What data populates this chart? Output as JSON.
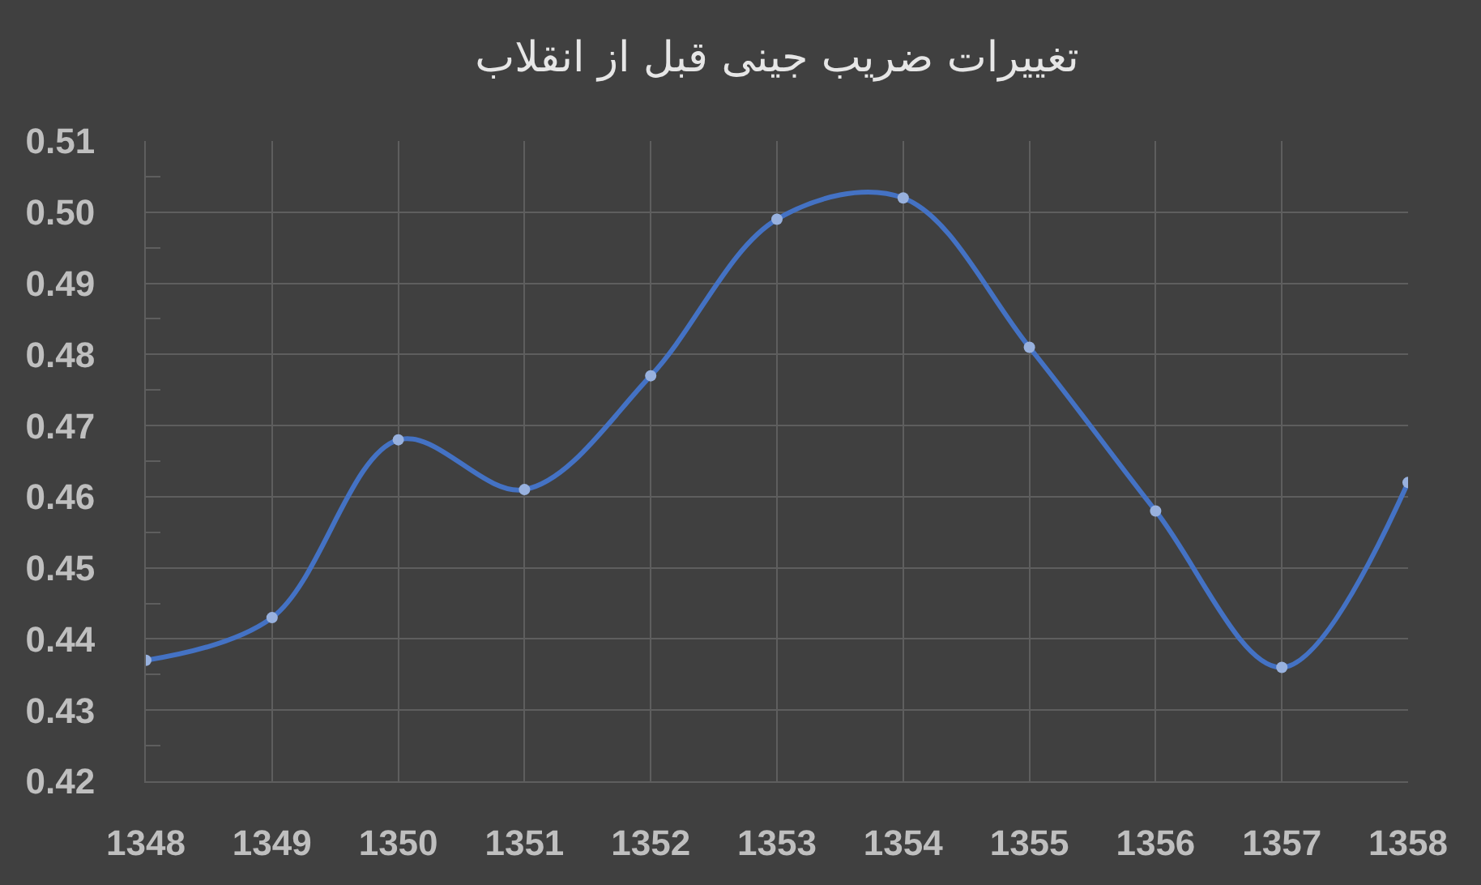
{
  "chart_data": {
    "type": "line",
    "title": "تغییرات ضریب جینی قبل از انقلاب",
    "categories": [
      "1348",
      "1349",
      "1350",
      "1351",
      "1352",
      "1353",
      "1354",
      "1355",
      "1356",
      "1357",
      "1358"
    ],
    "series": [
      {
        "color": "#4472c4",
        "values": [
          0.437,
          0.443,
          0.468,
          0.461,
          0.477,
          0.499,
          0.502,
          0.481,
          0.458,
          0.436,
          0.462
        ]
      }
    ],
    "ylim": [
      0.42,
      0.51
    ],
    "yticks": [
      0.42,
      {
        "value": 0.425,
        "label": null
      },
      0.43,
      {
        "value": 0.435,
        "label": null
      },
      0.44,
      {
        "value": 0.445,
        "label": null
      },
      0.45,
      {
        "value": 0.455,
        "label": null
      },
      0.46,
      {
        "value": 0.465,
        "label": null
      },
      0.47,
      {
        "value": 0.475,
        "label": null
      },
      0.48,
      {
        "value": 0.485,
        "label": null
      },
      0.49,
      {
        "value": 0.495,
        "label": null
      },
      {
        "value": 0.5,
        "label": "0.50"
      },
      {
        "value": 0.505,
        "label": null
      },
      0.51
    ],
    "grid": true,
    "marker": "circle",
    "line_style": "solid"
  }
}
